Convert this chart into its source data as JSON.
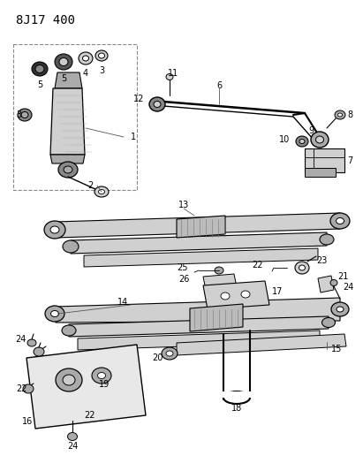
{
  "title": "8J17 400",
  "bg_color": "#ffffff",
  "line_color": "#000000",
  "gray_light": "#d0d0d0",
  "gray_mid": "#aaaaaa",
  "gray_dark": "#888888",
  "title_fontsize": 10,
  "label_fontsize": 7,
  "fig_width": 4.11,
  "fig_height": 5.33,
  "dpi": 100
}
